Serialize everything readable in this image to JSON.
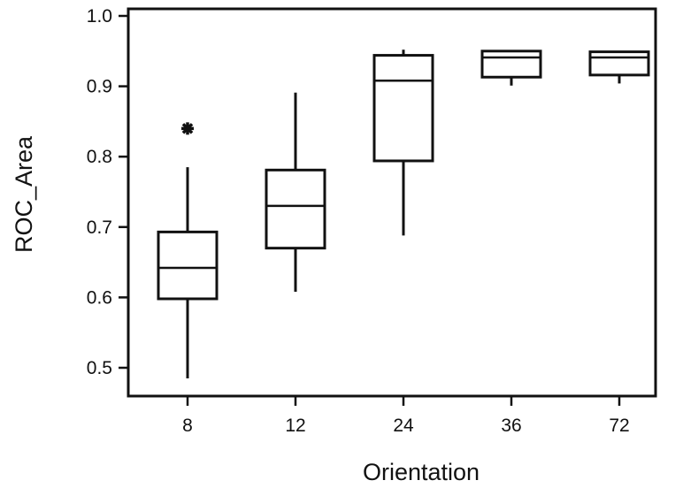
{
  "chart_data": {
    "type": "box",
    "xlabel": "Orientation",
    "ylabel": "ROC_Area",
    "ylim": [
      0.46,
      1.0
    ],
    "yticks": [
      0.5,
      0.6,
      0.7,
      0.8,
      0.9,
      1.0
    ],
    "ytick_labels": [
      "0.5",
      "0.6",
      "0.7",
      "0.8",
      "0.9",
      "1.0"
    ],
    "categories": [
      "8",
      "12",
      "24",
      "36",
      "72"
    ],
    "boxes": [
      {
        "category": "8",
        "min": 0.485,
        "q1": 0.598,
        "median": 0.642,
        "q3": 0.693,
        "max": 0.785,
        "outliers": [
          0.84
        ]
      },
      {
        "category": "12",
        "min": 0.608,
        "q1": 0.67,
        "median": 0.73,
        "q3": 0.781,
        "max": 0.891,
        "outliers": []
      },
      {
        "category": "24",
        "min": 0.688,
        "q1": 0.794,
        "median": 0.908,
        "q3": 0.944,
        "max": 0.952,
        "outliers": []
      },
      {
        "category": "36",
        "min": 0.901,
        "q1": 0.913,
        "median": 0.941,
        "q3": 0.95,
        "max": 0.951,
        "outliers": []
      },
      {
        "category": "72",
        "min": 0.904,
        "q1": 0.916,
        "median": 0.941,
        "q3": 0.949,
        "max": 0.95,
        "outliers": []
      }
    ],
    "grid": false,
    "legend": "none"
  },
  "colors": {
    "ink": "#111111",
    "background": "#ffffff"
  }
}
